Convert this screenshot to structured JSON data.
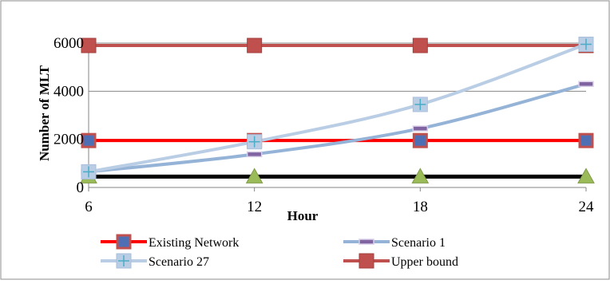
{
  "chart_data": {
    "type": "line",
    "title": "",
    "xlabel": "Hour",
    "ylabel": "Number of MLT",
    "categories": [
      "6",
      "12",
      "18",
      "24"
    ],
    "x": [
      6,
      12,
      18,
      24
    ],
    "ylim": [
      0,
      6000
    ],
    "yticks": [
      "0",
      "2000",
      "4000",
      "6000"
    ],
    "grid": "horizontal",
    "legend_position": "bottom",
    "series": [
      {
        "name": "Upper bound",
        "values": [
          5900,
          5900,
          5900,
          5900
        ],
        "color": "#c0504d",
        "marker": "square",
        "smooth": false,
        "in_legend": true
      },
      {
        "name": "Existing Network",
        "values": [
          1950,
          1950,
          1950,
          1950
        ],
        "color": "#ff0000",
        "marker": "square-outlined",
        "smooth": false,
        "in_legend": true
      },
      {
        "name": "",
        "values": [
          450,
          450,
          450,
          450
        ],
        "color": "#000000",
        "marker": "triangle",
        "marker_color": "#9bbb59",
        "smooth": false,
        "in_legend": false
      },
      {
        "name": "Scenario 1",
        "values": [
          650,
          1380,
          2450,
          4300
        ],
        "color": "#95b3d7",
        "marker": "dash",
        "smooth": true,
        "in_legend": true
      },
      {
        "name": "Scenario 27",
        "values": [
          650,
          1900,
          3450,
          5950
        ],
        "color": "#b9cde5",
        "marker": "plus-square",
        "smooth": true,
        "in_legend": true
      }
    ]
  }
}
